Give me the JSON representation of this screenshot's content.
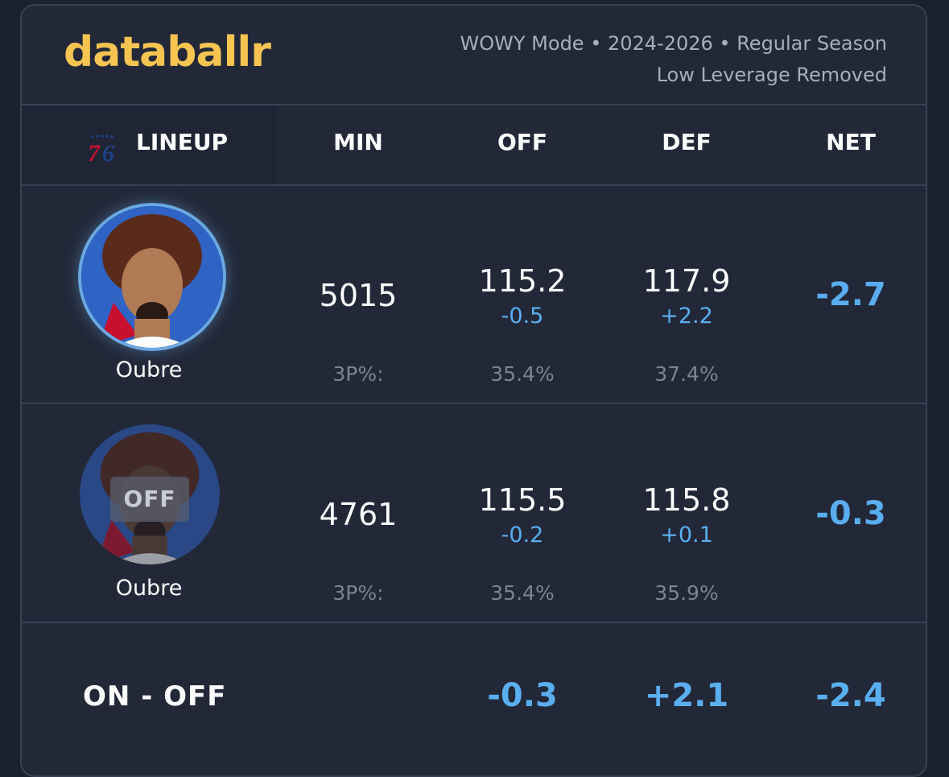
{
  "brand": {
    "name": "databallr"
  },
  "filters": {
    "line1": "WOWY Mode • 2024-2026 • Regular Season",
    "line2": "Low Leverage Removed"
  },
  "columns": {
    "lineup": "LINEUP",
    "min": "MIN",
    "off": "OFF",
    "def": "DEF",
    "net": "NET"
  },
  "team_logo": {
    "icon": "76ers-logo-icon",
    "text": "76",
    "color": "#c8102e",
    "accent": "#1d428a"
  },
  "rows": [
    {
      "status": "on",
      "player": "Oubre",
      "min": "5015",
      "off": "115.2",
      "off_diff": "-0.5",
      "def": "117.9",
      "def_diff": "+2.2",
      "net": "-2.7",
      "three_label": "3P%:",
      "off_3p": "35.4%",
      "def_3p": "37.4%"
    },
    {
      "status": "off",
      "badge": "OFF",
      "player": "Oubre",
      "min": "4761",
      "off": "115.5",
      "off_diff": "-0.2",
      "def": "115.8",
      "def_diff": "+0.1",
      "net": "-0.3",
      "three_label": "3P%:",
      "off_3p": "35.4%",
      "def_3p": "35.9%"
    }
  ],
  "on_off": {
    "label": "ON - OFF",
    "off": "-0.3",
    "def": "+2.1",
    "net": "-2.4"
  },
  "colors": {
    "background": "#222838",
    "brand": "#f5c451",
    "accent_blue": "#5aaef0",
    "muted": "#7d8391"
  }
}
